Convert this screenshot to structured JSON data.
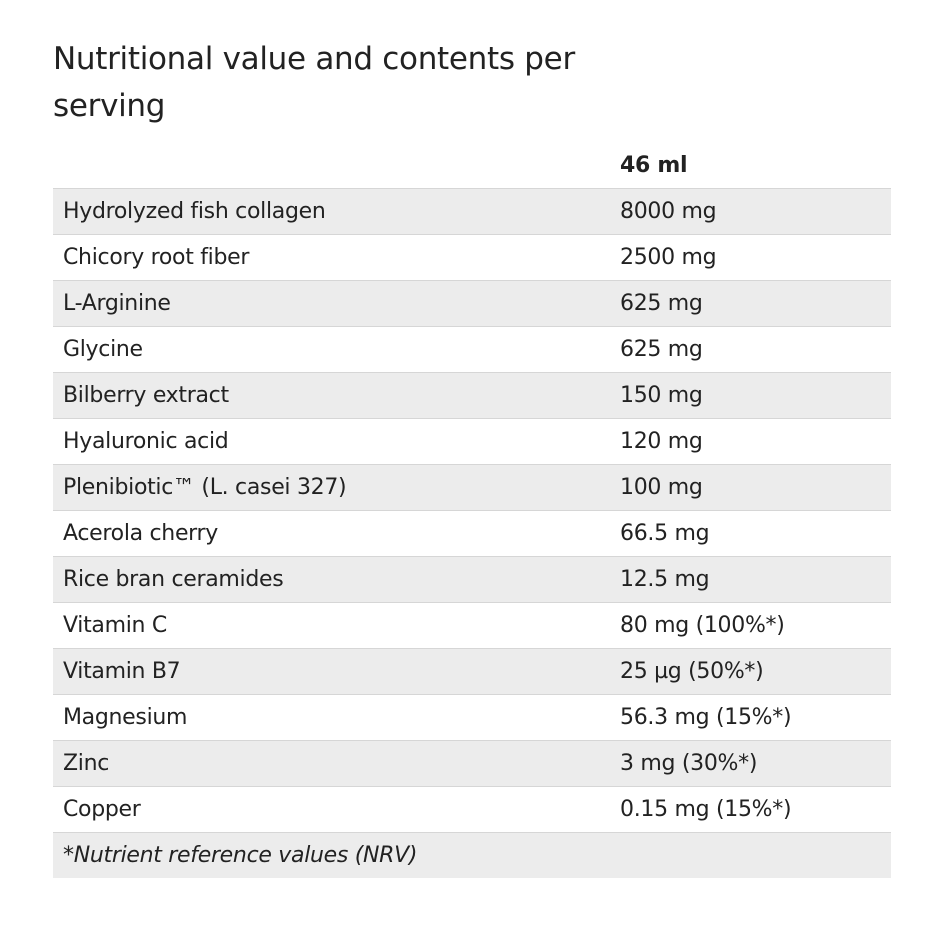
{
  "title": "Nutritional value and contents per serving",
  "table": {
    "header": [
      "",
      "46 ml"
    ],
    "rows": [
      [
        "Hydrolyzed fish collagen",
        "8000 mg"
      ],
      [
        "Chicory root fiber",
        "2500 mg"
      ],
      [
        "L-Arginine",
        "625 mg"
      ],
      [
        "Glycine",
        "625 mg"
      ],
      [
        "Bilberry extract",
        "150 mg"
      ],
      [
        "Hyaluronic acid",
        "120 mg"
      ],
      [
        "Plenibiotic™ (L. casei 327)",
        "100 mg"
      ],
      [
        "Acerola cherry",
        "66.5 mg"
      ],
      [
        "Rice bran ceramides",
        "12.5 mg"
      ],
      [
        "Vitamin C",
        "80 mg (100%*)"
      ],
      [
        "Vitamin B7",
        "25 µg (50%*)"
      ],
      [
        "Magnesium",
        "56.3 mg (15%*)"
      ],
      [
        "Zinc",
        "3 mg (30%*)"
      ],
      [
        "Copper",
        "0.15 mg (15%*)"
      ]
    ],
    "footnote": "*Nutrient reference values (NRV)"
  }
}
